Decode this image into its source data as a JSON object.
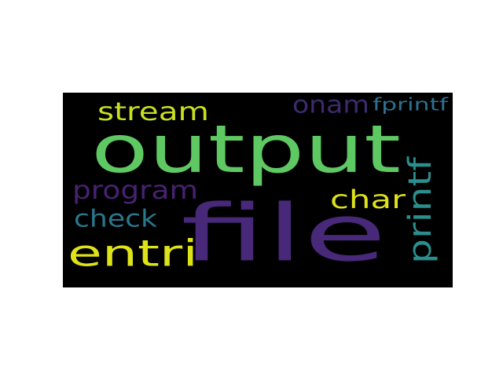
{
  "words": [
    {
      "text": "output",
      "color": "#5ec962",
      "orientation": "horizontal"
    },
    {
      "text": "file",
      "color": "#482878",
      "orientation": "horizontal"
    },
    {
      "text": "entri",
      "color": "#dde318",
      "orientation": "horizontal"
    },
    {
      "text": "program",
      "color": "#482173",
      "orientation": "horizontal"
    },
    {
      "text": "stream",
      "color": "#c8e020",
      "orientation": "horizontal"
    },
    {
      "text": "char",
      "color": "#dde318",
      "orientation": "horizontal"
    },
    {
      "text": "check",
      "color": "#29788e",
      "orientation": "horizontal"
    },
    {
      "text": "onam",
      "color": "#3e2a6e",
      "orientation": "horizontal"
    },
    {
      "text": "printf",
      "color": "#2a8f8e",
      "orientation": "vertical"
    },
    {
      "text": "fprintf",
      "color": "#2d6f8e",
      "orientation": "horizontal"
    }
  ]
}
